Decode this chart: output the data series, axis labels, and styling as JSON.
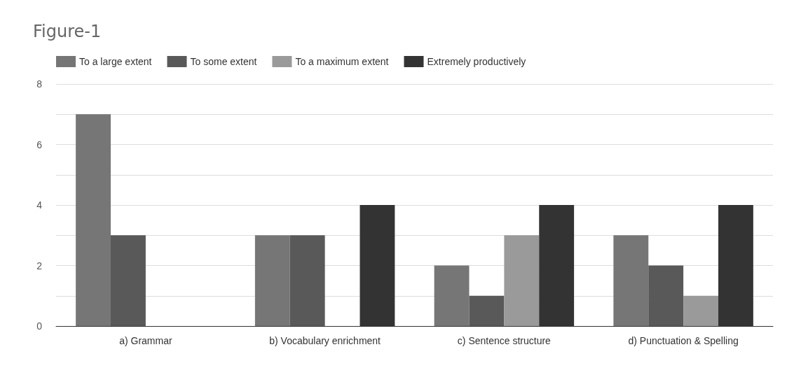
{
  "chart_data": {
    "type": "bar",
    "title": "Figure-1",
    "categories": [
      "a) Grammar",
      "b) Vocabulary enrichment",
      "c) Sentence structure",
      "d) Punctuation & Spelling"
    ],
    "series": [
      {
        "name": "To a large extent",
        "color": "#767676",
        "values": [
          7,
          3,
          2,
          3
        ]
      },
      {
        "name": "To some extent",
        "color": "#595959",
        "values": [
          3,
          3,
          1,
          2
        ]
      },
      {
        "name": "To a maximum extent",
        "color": "#9a9a9a",
        "values": [
          0,
          0,
          3,
          1
        ]
      },
      {
        "name": "Extremely productively",
        "color": "#333333",
        "values": [
          0,
          4,
          4,
          4
        ]
      }
    ],
    "ylim": [
      0,
      8
    ],
    "yticks": [
      0,
      {
        "value": 1,
        "label": null
      },
      2,
      {
        "value": 3,
        "label": null
      },
      4,
      {
        "value": 5,
        "label": null
      },
      6,
      {
        "value": 7,
        "label": null
      },
      8
    ],
    "grid": "y",
    "legend": "top left"
  }
}
